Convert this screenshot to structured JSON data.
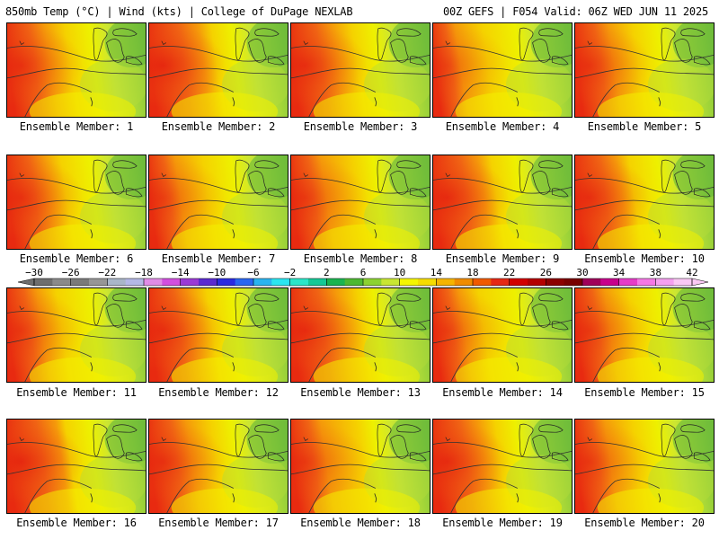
{
  "header": {
    "left": "850mb Temp (°C) | Wind (kts) | College of DuPage NEXLAB",
    "right": "00Z GEFS | F054 Valid: 06Z WED JUN 11 2025"
  },
  "panels": [
    {
      "label": "Ensemble Member: 1"
    },
    {
      "label": "Ensemble Member: 2"
    },
    {
      "label": "Ensemble Member: 3"
    },
    {
      "label": "Ensemble Member: 4"
    },
    {
      "label": "Ensemble Member: 5"
    },
    {
      "label": "Ensemble Member: 6"
    },
    {
      "label": "Ensemble Member: 7"
    },
    {
      "label": "Ensemble Member: 8"
    },
    {
      "label": "Ensemble Member: 9"
    },
    {
      "label": "Ensemble Member: 10"
    },
    {
      "label": "Ensemble Member: 11"
    },
    {
      "label": "Ensemble Member: 12"
    },
    {
      "label": "Ensemble Member: 13"
    },
    {
      "label": "Ensemble Member: 14"
    },
    {
      "label": "Ensemble Member: 15"
    },
    {
      "label": "Ensemble Member: 16"
    },
    {
      "label": "Ensemble Member: 17"
    },
    {
      "label": "Ensemble Member: 18"
    },
    {
      "label": "Ensemble Member: 19"
    },
    {
      "label": "Ensemble Member: 20"
    }
  ],
  "colorbar": {
    "ticks": [
      "-30",
      "-26",
      "-22",
      "-18",
      "-14",
      "-10",
      "-6",
      "-2",
      "2",
      "6",
      "10",
      "14",
      "18",
      "22",
      "26",
      "30",
      "34",
      "38",
      "42"
    ],
    "colors": [
      "#6e6e6e",
      "#8a8a8a",
      "#7a7a7a",
      "#969696",
      "#a9b6c8",
      "#b4b8e6",
      "#e08ce6",
      "#d24fe0",
      "#9a3ad6",
      "#5a2ad0",
      "#2a2ae0",
      "#2a66f0",
      "#2ab4f0",
      "#2ae6f0",
      "#2ae6c8",
      "#16c896",
      "#1ab450",
      "#4cb832",
      "#8cd232",
      "#c8e632",
      "#f5f500",
      "#f5dc00",
      "#f5b400",
      "#f08c00",
      "#f05a00",
      "#e62814",
      "#d20000",
      "#b40000",
      "#8c0000",
      "#780000",
      "#a0005a",
      "#c8008c",
      "#e63cc8",
      "#f578e6",
      "#f5a0f0",
      "#fac8f5"
    ]
  }
}
